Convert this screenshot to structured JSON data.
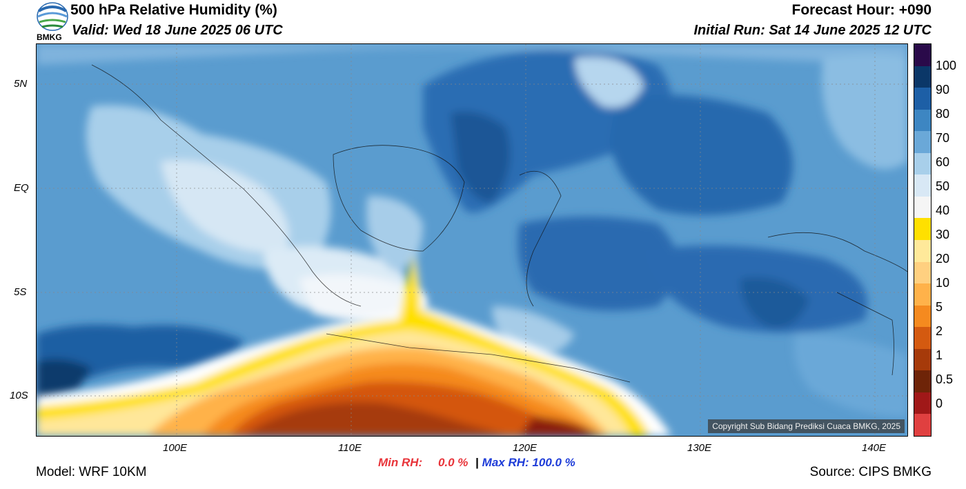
{
  "header": {
    "logo_text": "BMKG",
    "title": "500 hPa Relative Humidity (%)",
    "valid": "Valid: Wed 18 June 2025 06 UTC",
    "forecast_hour": "Forecast Hour: +090",
    "initial_run": "Initial Run: Sat 14 June 2025 12 UTC"
  },
  "map": {
    "lat_ticks": [
      "5N",
      "EQ",
      "5S",
      "10S"
    ],
    "lon_ticks": [
      "100E",
      "110E",
      "120E",
      "130E",
      "140E"
    ],
    "copyright": "Copyright Sub Bidang Prediksi Cuaca BMKG, 2025",
    "colors": {
      "dark_blue": "#1a4f8f",
      "mid_blue": "#3d86c2",
      "light_blue": "#9cc6e4",
      "pale": "#e6f0f8",
      "yellow": "#ffe000",
      "orange": "#d85a10",
      "brown": "#8a3208"
    }
  },
  "colorbar": {
    "levels": [
      "100",
      "90",
      "80",
      "70",
      "60",
      "50",
      "40",
      "30",
      "20",
      "10",
      "5",
      "2",
      "1",
      "0.5",
      "0"
    ],
    "colors": [
      "#2a0a4a",
      "#0b3768",
      "#1d5fa6",
      "#3d86c2",
      "#6aa8d8",
      "#a8cfea",
      "#d8e8f5",
      "#f5f5f5",
      "#ffe000",
      "#ffe99a",
      "#ffd080",
      "#ffb24a",
      "#f58a1f",
      "#d45a10",
      "#a63a0a",
      "#6e2408",
      "#a01818",
      "#e04040"
    ]
  },
  "stats": {
    "min_label": "Min RH:",
    "min_value": "0.0 %",
    "separator": "|",
    "max_label": "Max RH:",
    "max_value": "100.0 %"
  },
  "footer": {
    "model": "Model: WRF 10KM",
    "source": "Source: CIPS BMKG"
  }
}
